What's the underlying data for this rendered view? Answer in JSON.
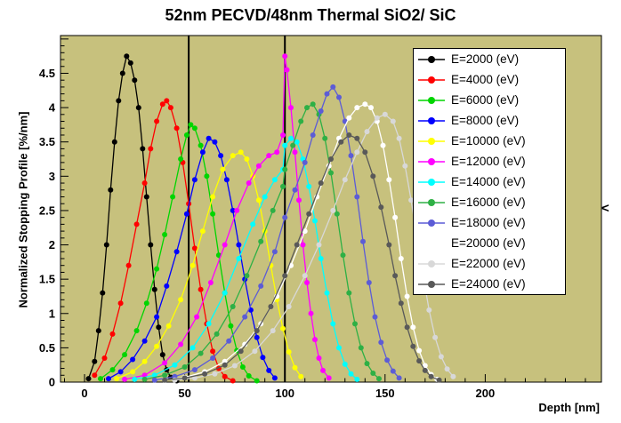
{
  "plot_bg": "#c7c17d",
  "side_chevron": "<",
  "chart_data": {
    "type": "line",
    "title": "52nm PECVD/48nm Thermal SiO2/ SiC",
    "xlabel": "Depth [nm]",
    "ylabel": "Normalized Stopping Profile [%/nm]",
    "xlim": [
      -12,
      258
    ],
    "ylim": [
      0,
      5.05
    ],
    "x_major_ticks": [
      0,
      50,
      100,
      150,
      200
    ],
    "x_minor_step": 10,
    "y_major_step": 0.5,
    "y_minor_step": 0.1,
    "y_label_max": 4.5,
    "grid": false,
    "legend_position": "top-right",
    "vlines": [
      52,
      100
    ],
    "series": [
      {
        "name": "E2000",
        "label": "E=2000 (eV)",
        "color": "#000000",
        "points": [
          [
            2,
            0.05
          ],
          [
            5,
            0.3
          ],
          [
            7,
            0.75
          ],
          [
            9,
            1.3
          ],
          [
            11,
            2.0
          ],
          [
            13,
            2.8
          ],
          [
            15,
            3.5
          ],
          [
            17,
            4.1
          ],
          [
            19,
            4.5
          ],
          [
            21,
            4.75
          ],
          [
            23,
            4.65
          ],
          [
            25,
            4.4
          ],
          [
            27,
            4.0
          ],
          [
            29,
            3.4
          ],
          [
            31,
            2.7
          ],
          [
            33,
            2.0
          ],
          [
            35,
            1.35
          ],
          [
            37,
            0.8
          ],
          [
            39,
            0.4
          ],
          [
            41,
            0.18
          ],
          [
            43,
            0.07
          ],
          [
            46,
            0.02
          ]
        ]
      },
      {
        "name": "E4000",
        "label": "E=4000 (eV)",
        "color": "#ff0000",
        "points": [
          [
            5,
            0.1
          ],
          [
            10,
            0.35
          ],
          [
            14,
            0.7
          ],
          [
            18,
            1.15
          ],
          [
            22,
            1.7
          ],
          [
            26,
            2.3
          ],
          [
            30,
            2.9
          ],
          [
            33,
            3.4
          ],
          [
            36,
            3.8
          ],
          [
            39,
            4.05
          ],
          [
            41,
            4.1
          ],
          [
            43,
            4.0
          ],
          [
            46,
            3.7
          ],
          [
            49,
            3.2
          ],
          [
            52,
            2.6
          ],
          [
            55,
            1.95
          ],
          [
            58,
            1.35
          ],
          [
            61,
            0.85
          ],
          [
            64,
            0.45
          ],
          [
            67,
            0.2
          ],
          [
            70,
            0.08
          ],
          [
            74,
            0.02
          ]
        ]
      },
      {
        "name": "E6000",
        "label": "E=6000 (eV)",
        "color": "#00d500",
        "points": [
          [
            8,
            0.05
          ],
          [
            14,
            0.18
          ],
          [
            20,
            0.4
          ],
          [
            26,
            0.75
          ],
          [
            31,
            1.15
          ],
          [
            36,
            1.65
          ],
          [
            40,
            2.15
          ],
          [
            44,
            2.7
          ],
          [
            48,
            3.25
          ],
          [
            51,
            3.6
          ],
          [
            53,
            3.75
          ],
          [
            55,
            3.7
          ],
          [
            58,
            3.45
          ],
          [
            61,
            3.0
          ],
          [
            64,
            2.45
          ],
          [
            67,
            1.85
          ],
          [
            70,
            1.3
          ],
          [
            73,
            0.82
          ],
          [
            76,
            0.46
          ],
          [
            79,
            0.22
          ],
          [
            82,
            0.09
          ],
          [
            86,
            0.02
          ]
        ]
      },
      {
        "name": "E8000",
        "label": "E=8000 (eV)",
        "color": "#0000ff",
        "points": [
          [
            12,
            0.05
          ],
          [
            18,
            0.15
          ],
          [
            24,
            0.33
          ],
          [
            30,
            0.6
          ],
          [
            36,
            0.95
          ],
          [
            41,
            1.4
          ],
          [
            46,
            1.9
          ],
          [
            51,
            2.45
          ],
          [
            55,
            2.95
          ],
          [
            59,
            3.35
          ],
          [
            62,
            3.55
          ],
          [
            65,
            3.5
          ],
          [
            68,
            3.3
          ],
          [
            71,
            2.95
          ],
          [
            74,
            2.5
          ],
          [
            77,
            2.0
          ],
          [
            80,
            1.5
          ],
          [
            83,
            1.05
          ],
          [
            86,
            0.65
          ],
          [
            89,
            0.36
          ],
          [
            92,
            0.17
          ],
          [
            95,
            0.06
          ]
        ]
      },
      {
        "name": "E10000",
        "label": "E=10000 (eV)",
        "color": "#ffff00",
        "points": [
          [
            16,
            0.05
          ],
          [
            24,
            0.15
          ],
          [
            30,
            0.3
          ],
          [
            36,
            0.52
          ],
          [
            42,
            0.82
          ],
          [
            48,
            1.2
          ],
          [
            54,
            1.7
          ],
          [
            59,
            2.2
          ],
          [
            64,
            2.7
          ],
          [
            69,
            3.1
          ],
          [
            74,
            3.3
          ],
          [
            78,
            3.35
          ],
          [
            81,
            3.25
          ],
          [
            84,
            3.0
          ],
          [
            87,
            2.65
          ],
          [
            90,
            2.2
          ],
          [
            93,
            1.7
          ],
          [
            96,
            1.2
          ],
          [
            99,
            0.78
          ],
          [
            102,
            0.44
          ],
          [
            105,
            0.21
          ],
          [
            108,
            0.08
          ]
        ]
      },
      {
        "name": "E12000",
        "label": "E=12000 (eV)",
        "color": "#ff00ff",
        "points": [
          [
            20,
            0.04
          ],
          [
            30,
            0.1
          ],
          [
            40,
            0.28
          ],
          [
            48,
            0.55
          ],
          [
            56,
            0.95
          ],
          [
            63,
            1.45
          ],
          [
            70,
            2.0
          ],
          [
            76,
            2.5
          ],
          [
            82,
            2.9
          ],
          [
            87,
            3.15
          ],
          [
            92,
            3.3
          ],
          [
            96,
            3.35
          ],
          [
            99,
            3.6
          ],
          [
            100,
            4.75
          ],
          [
            101,
            4.55
          ],
          [
            103,
            4.0
          ],
          [
            105,
            3.35
          ],
          [
            107,
            2.65
          ],
          [
            109,
            2.0
          ],
          [
            111,
            1.45
          ],
          [
            113,
            1.0
          ],
          [
            115,
            0.62
          ],
          [
            117,
            0.35
          ],
          [
            119,
            0.17
          ],
          [
            122,
            0.06
          ]
        ]
      },
      {
        "name": "E14000",
        "label": "E=14000 (eV)",
        "color": "#00ffff",
        "points": [
          [
            25,
            0.04
          ],
          [
            35,
            0.1
          ],
          [
            45,
            0.25
          ],
          [
            54,
            0.5
          ],
          [
            62,
            0.85
          ],
          [
            70,
            1.3
          ],
          [
            77,
            1.8
          ],
          [
            84,
            2.3
          ],
          [
            90,
            2.7
          ],
          [
            95,
            2.95
          ],
          [
            99,
            3.1
          ],
          [
            100,
            3.45
          ],
          [
            103,
            3.55
          ],
          [
            106,
            3.5
          ],
          [
            109,
            3.25
          ],
          [
            112,
            2.85
          ],
          [
            115,
            2.35
          ],
          [
            118,
            1.8
          ],
          [
            121,
            1.3
          ],
          [
            124,
            0.85
          ],
          [
            127,
            0.5
          ],
          [
            130,
            0.26
          ],
          [
            133,
            0.12
          ],
          [
            136,
            0.04
          ]
        ]
      },
      {
        "name": "E16000",
        "label": "E=16000 (eV)",
        "color": "#2eb045",
        "points": [
          [
            30,
            0.04
          ],
          [
            40,
            0.1
          ],
          [
            50,
            0.22
          ],
          [
            58,
            0.42
          ],
          [
            66,
            0.7
          ],
          [
            74,
            1.1
          ],
          [
            81,
            1.55
          ],
          [
            88,
            2.05
          ],
          [
            94,
            2.5
          ],
          [
            99,
            2.85
          ],
          [
            100,
            3.1
          ],
          [
            104,
            3.45
          ],
          [
            108,
            3.8
          ],
          [
            111,
            4.0
          ],
          [
            114,
            4.05
          ],
          [
            117,
            3.9
          ],
          [
            120,
            3.55
          ],
          [
            123,
            3.05
          ],
          [
            126,
            2.45
          ],
          [
            129,
            1.85
          ],
          [
            132,
            1.3
          ],
          [
            135,
            0.85
          ],
          [
            138,
            0.5
          ],
          [
            141,
            0.27
          ],
          [
            144,
            0.13
          ],
          [
            147,
            0.05
          ]
        ]
      },
      {
        "name": "E18000",
        "label": "E=18000 (eV)",
        "color": "#5c5cd6",
        "points": [
          [
            35,
            0.03
          ],
          [
            45,
            0.08
          ],
          [
            55,
            0.18
          ],
          [
            64,
            0.35
          ],
          [
            72,
            0.6
          ],
          [
            80,
            0.95
          ],
          [
            88,
            1.4
          ],
          [
            95,
            1.9
          ],
          [
            100,
            2.4
          ],
          [
            105,
            2.8
          ],
          [
            110,
            3.2
          ],
          [
            114,
            3.6
          ],
          [
            118,
            3.95
          ],
          [
            121,
            4.2
          ],
          [
            124,
            4.3
          ],
          [
            127,
            4.15
          ],
          [
            130,
            3.8
          ],
          [
            133,
            3.3
          ],
          [
            136,
            2.7
          ],
          [
            139,
            2.05
          ],
          [
            142,
            1.45
          ],
          [
            145,
            0.95
          ],
          [
            148,
            0.58
          ],
          [
            151,
            0.32
          ],
          [
            154,
            0.16
          ],
          [
            157,
            0.06
          ]
        ]
      },
      {
        "name": "E20000",
        "label": "E=20000 (eV)",
        "color": "#ffffff",
        "points": [
          [
            40,
            0.03
          ],
          [
            50,
            0.07
          ],
          [
            60,
            0.15
          ],
          [
            70,
            0.3
          ],
          [
            80,
            0.55
          ],
          [
            88,
            0.85
          ],
          [
            96,
            1.25
          ],
          [
            103,
            1.7
          ],
          [
            110,
            2.2
          ],
          [
            116,
            2.7
          ],
          [
            122,
            3.15
          ],
          [
            127,
            3.55
          ],
          [
            132,
            3.85
          ],
          [
            136,
            4.0
          ],
          [
            140,
            4.05
          ],
          [
            143,
            4.0
          ],
          [
            146,
            3.8
          ],
          [
            149,
            3.45
          ],
          [
            152,
            2.95
          ],
          [
            155,
            2.4
          ],
          [
            158,
            1.8
          ],
          [
            161,
            1.25
          ],
          [
            164,
            0.8
          ],
          [
            167,
            0.46
          ],
          [
            170,
            0.24
          ],
          [
            173,
            0.11
          ],
          [
            176,
            0.04
          ]
        ]
      },
      {
        "name": "E22000",
        "label": "E=22000 (eV)",
        "color": "#d8d8d8",
        "points": [
          [
            45,
            0.03
          ],
          [
            55,
            0.06
          ],
          [
            65,
            0.12
          ],
          [
            75,
            0.24
          ],
          [
            85,
            0.45
          ],
          [
            94,
            0.75
          ],
          [
            102,
            1.1
          ],
          [
            110,
            1.55
          ],
          [
            117,
            2.0
          ],
          [
            124,
            2.5
          ],
          [
            130,
            2.95
          ],
          [
            136,
            3.35
          ],
          [
            141,
            3.65
          ],
          [
            146,
            3.85
          ],
          [
            150,
            3.9
          ],
          [
            154,
            3.8
          ],
          [
            157,
            3.55
          ],
          [
            160,
            3.15
          ],
          [
            163,
            2.65
          ],
          [
            166,
            2.1
          ],
          [
            169,
            1.55
          ],
          [
            172,
            1.05
          ],
          [
            175,
            0.65
          ],
          [
            178,
            0.37
          ],
          [
            181,
            0.19
          ],
          [
            184,
            0.08
          ]
        ]
      },
      {
        "name": "E24000",
        "label": "E=24000 (eV)",
        "color": "#595959",
        "points": [
          [
            40,
            0.03
          ],
          [
            50,
            0.06
          ],
          [
            60,
            0.12
          ],
          [
            70,
            0.25
          ],
          [
            78,
            0.45
          ],
          [
            86,
            0.75
          ],
          [
            93,
            1.1
          ],
          [
            100,
            1.55
          ],
          [
            106,
            2.0
          ],
          [
            112,
            2.45
          ],
          [
            118,
            2.9
          ],
          [
            123,
            3.25
          ],
          [
            128,
            3.5
          ],
          [
            132,
            3.6
          ],
          [
            136,
            3.55
          ],
          [
            140,
            3.35
          ],
          [
            144,
            3.0
          ],
          [
            148,
            2.55
          ],
          [
            152,
            2.0
          ],
          [
            155,
            1.55
          ],
          [
            158,
            1.15
          ],
          [
            161,
            0.8
          ],
          [
            164,
            0.52
          ],
          [
            167,
            0.31
          ],
          [
            170,
            0.17
          ],
          [
            173,
            0.08
          ],
          [
            177,
            0.03
          ]
        ]
      }
    ]
  }
}
